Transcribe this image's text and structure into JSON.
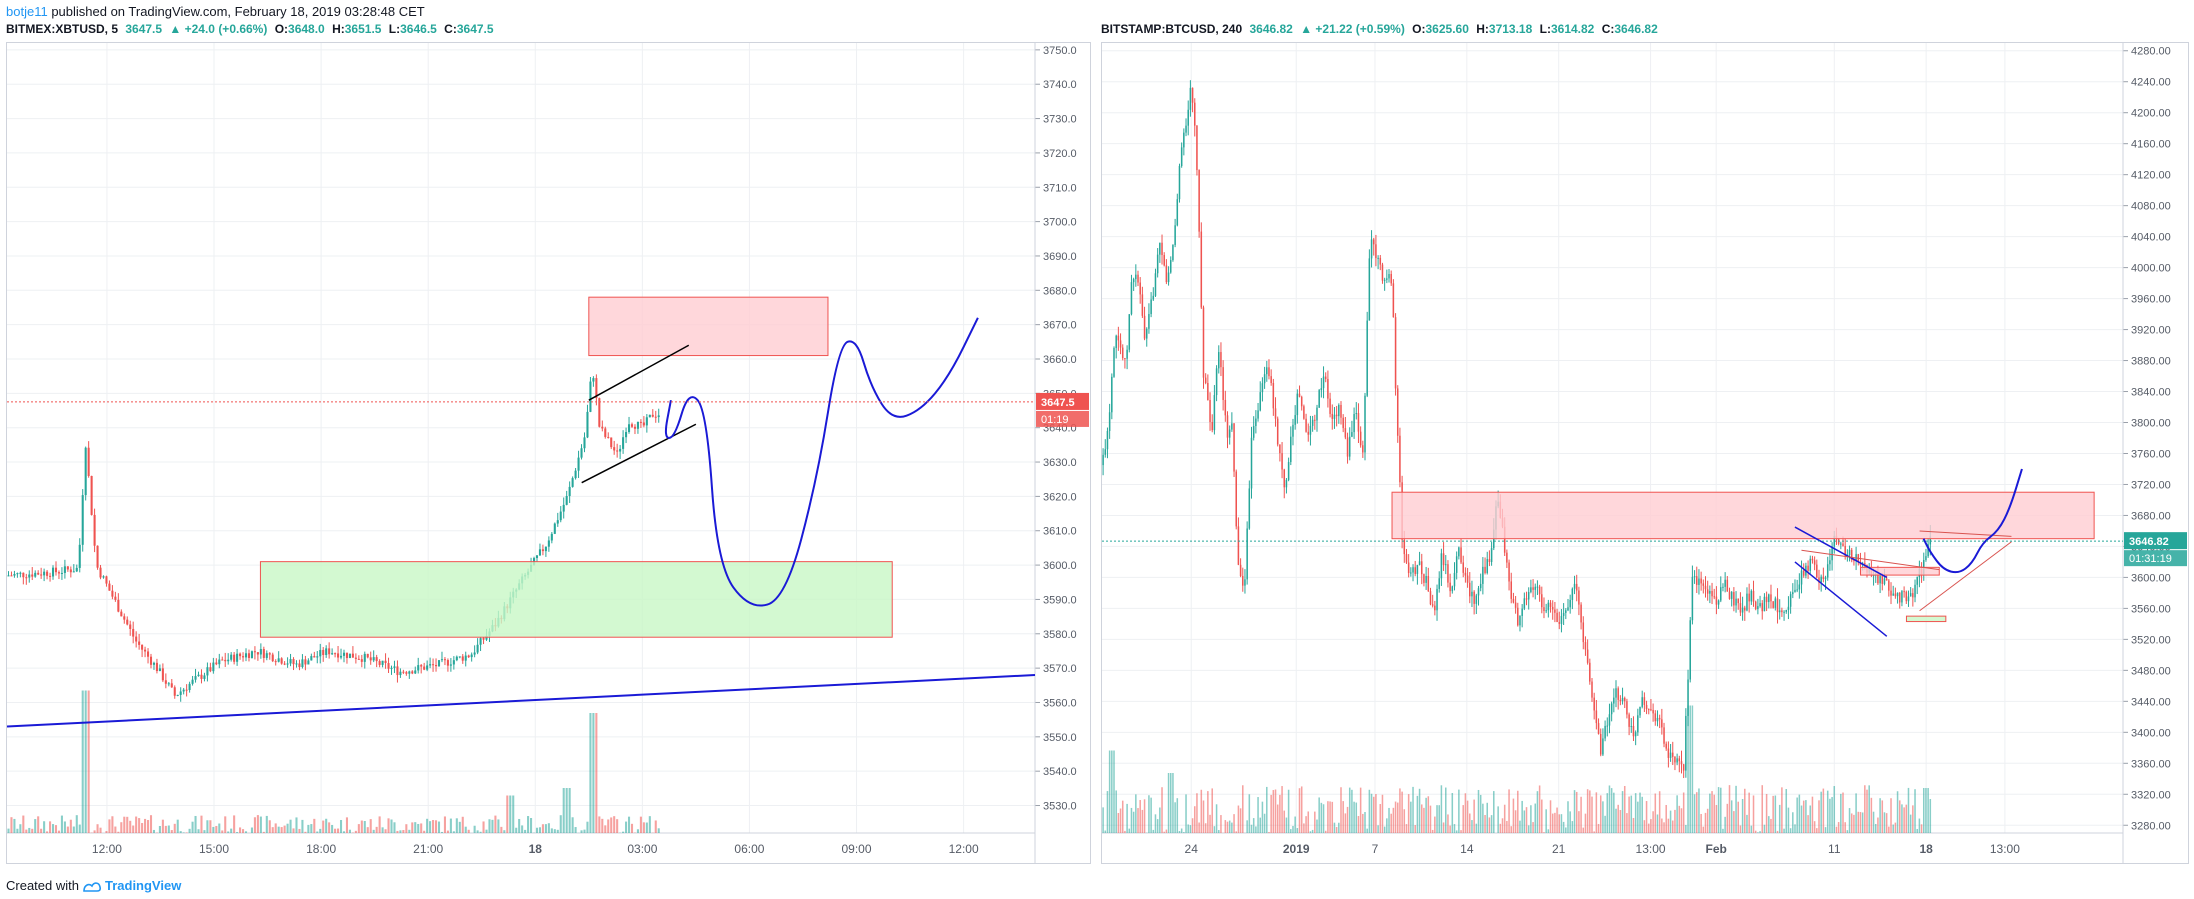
{
  "header": {
    "username": "botje11",
    "text": "published on TradingView.com, February 18, 2019 03:28:48 CET"
  },
  "footer": {
    "created_with": "Created with",
    "brand": "TradingView",
    "logo_icon": "tradingview-logo-icon"
  },
  "colors": {
    "up": "#26a69a",
    "down": "#ef5350",
    "grid": "#eef0f3",
    "axis_text": "#555b66",
    "trend": "#1a1ad6",
    "zone_red": "#ffcdd2",
    "zone_green": "#c8f7c5",
    "last_left": "#ef5350",
    "last_right": "#26a69a"
  },
  "chart_data": [
    {
      "type": "candlestick",
      "symbol_line": {
        "symbol": "BITMEX:XBTUSD, 5",
        "last": "3647.5",
        "change": "▲ +24.0 (+0.66%)",
        "o_label": "O:",
        "o": "3648.0",
        "h_label": "H:",
        "h": "3651.5",
        "l_label": "L:",
        "l": "3646.5",
        "c_label": "C:",
        "c": "3647.5"
      },
      "y_ticks": [
        "3750.0",
        "3740.0",
        "3730.0",
        "3720.0",
        "3710.0",
        "3700.0",
        "3690.0",
        "3680.0",
        "3670.0",
        "3660.0",
        "3650.0",
        "3640.0",
        "3630.0",
        "3620.0",
        "3610.0",
        "3600.0",
        "3590.0",
        "3580.0",
        "3570.0",
        "3560.0",
        "3550.0",
        "3540.0",
        "3530.0"
      ],
      "ylim": [
        3522,
        3752
      ],
      "x_ticks": [
        "12:00",
        "15:00",
        "18:00",
        "21:00",
        "18",
        "03:00",
        "06:00",
        "09:00",
        "12:00"
      ],
      "x_tick_hours": [
        12,
        15,
        18,
        21,
        24,
        27,
        30,
        33,
        36
      ],
      "x_range_hours": [
        9.2,
        38.0
      ],
      "last_price": {
        "value": 3647.5,
        "label": "3647.5",
        "countdown": "01:19"
      },
      "zones": [
        {
          "color": "red",
          "x0": 25.5,
          "x1": 32.2,
          "y0": 3661,
          "y1": 3678
        },
        {
          "color": "green",
          "x0": 16.3,
          "x1": 34.0,
          "y0": 3579,
          "y1": 3601
        }
      ],
      "lines": [
        {
          "color": "blue",
          "width": 2,
          "points": [
            [
              9.2,
              3553
            ],
            [
              38.0,
              3568
            ]
          ]
        },
        {
          "color": "black",
          "width": 1.5,
          "points": [
            [
              25.5,
              3648
            ],
            [
              28.3,
              3664
            ]
          ]
        },
        {
          "color": "black",
          "width": 1.5,
          "points": [
            [
              25.3,
              3624
            ],
            [
              28.5,
              3641
            ]
          ]
        }
      ],
      "drawing": {
        "color": "blue",
        "width": 2,
        "points": [
          [
            27.8,
            3648
          ],
          [
            27.6,
            3637
          ],
          [
            27.9,
            3637
          ],
          [
            28.3,
            3651
          ],
          [
            28.8,
            3645
          ],
          [
            29.1,
            3600
          ],
          [
            30.0,
            3587
          ],
          [
            31.0,
            3590
          ],
          [
            31.9,
            3625
          ],
          [
            32.5,
            3664
          ],
          [
            33.0,
            3666
          ],
          [
            33.4,
            3652
          ],
          [
            34.0,
            3642
          ],
          [
            34.8,
            3645
          ],
          [
            35.6,
            3655
          ],
          [
            36.4,
            3672
          ]
        ]
      },
      "candles_price_path": [
        [
          9.2,
          3597
        ],
        [
          10.5,
          3598
        ],
        [
          11.2,
          3599
        ],
        [
          11.4,
          3636
        ],
        [
          11.7,
          3600
        ],
        [
          12.2,
          3590
        ],
        [
          12.8,
          3578
        ],
        [
          13.4,
          3570
        ],
        [
          13.9,
          3562
        ],
        [
          14.4,
          3566
        ],
        [
          15.2,
          3572
        ],
        [
          16.2,
          3575
        ],
        [
          17.3,
          3571
        ],
        [
          18.2,
          3575
        ],
        [
          19.2,
          3573
        ],
        [
          20.2,
          3569
        ],
        [
          21.3,
          3571
        ],
        [
          22.2,
          3574
        ],
        [
          22.9,
          3583
        ],
        [
          23.6,
          3595
        ],
        [
          24.3,
          3606
        ],
        [
          24.9,
          3620
        ],
        [
          25.4,
          3638
        ],
        [
          25.6,
          3658
        ],
        [
          25.8,
          3640
        ],
        [
          26.3,
          3632
        ],
        [
          26.6,
          3642
        ],
        [
          27.0,
          3640
        ],
        [
          27.3,
          3644
        ]
      ],
      "volume_spikes": [
        [
          11.4,
          0.95
        ],
        [
          25.6,
          0.8
        ],
        [
          23.3,
          0.25
        ],
        [
          24.9,
          0.3
        ]
      ]
    },
    {
      "type": "candlestick",
      "symbol_line": {
        "symbol": "BITSTAMP:BTCUSD, 240",
        "last": "3646.82",
        "change": "▲ +21.22 (+0.59%)",
        "o_label": "O:",
        "o": "3625.60",
        "h_label": "H:",
        "h": "3713.18",
        "l_label": "L:",
        "l": "3614.82",
        "c_label": "C:",
        "c": "3646.82"
      },
      "y_ticks": [
        "4280.00",
        "4240.00",
        "4200.00",
        "4160.00",
        "4120.00",
        "4080.00",
        "4040.00",
        "4000.00",
        "3960.00",
        "3920.00",
        "3880.00",
        "3840.00",
        "3800.00",
        "3760.00",
        "3720.00",
        "3680.00",
        "3640.00",
        "3600.00",
        "3560.00",
        "3520.00",
        "3480.00",
        "3440.00",
        "3400.00",
        "3360.00",
        "3320.00",
        "3280.00"
      ],
      "ylim": [
        3270,
        4290
      ],
      "x_ticks": [
        "24",
        "2019",
        "7",
        "14",
        "21",
        "13:00",
        "Feb",
        "11",
        "18",
        "13:00"
      ],
      "x_tick_days": [
        24,
        32,
        38,
        45,
        52,
        59,
        64,
        73,
        80,
        86
      ],
      "x_range_days": [
        17.2,
        95.0
      ],
      "last_price": {
        "value": 3646.82,
        "label": "3646.82",
        "countdown": "01:31:19"
      },
      "zones": [
        {
          "color": "red",
          "x0": 39.3,
          "x1": 92.8,
          "y0": 3650,
          "y1": 3710
        },
        {
          "color": "red",
          "x0": 75.0,
          "x1": 81.0,
          "y0": 3603,
          "y1": 3613
        },
        {
          "color": "green",
          "x0": 78.5,
          "x1": 81.5,
          "y0": 3543,
          "y1": 3550
        }
      ],
      "lines": [
        {
          "color": "blue",
          "width": 1.5,
          "points": [
            [
              70.0,
              3665
            ],
            [
              77.0,
              3600
            ]
          ]
        },
        {
          "color": "blue",
          "width": 1.5,
          "points": [
            [
              70.0,
              3620
            ],
            [
              77.0,
              3524
            ]
          ]
        },
        {
          "color": "red",
          "width": 1,
          "points": [
            [
              70.5,
              3635
            ],
            [
              81.0,
              3610
            ]
          ]
        },
        {
          "color": "red",
          "width": 1,
          "points": [
            [
              79.5,
              3557
            ],
            [
              86.5,
              3646
            ]
          ]
        },
        {
          "color": "red",
          "width": 1,
          "points": [
            [
              79.5,
              3660
            ],
            [
              86.5,
              3653
            ]
          ]
        }
      ],
      "drawing": {
        "color": "blue",
        "width": 2,
        "points": [
          [
            79.8,
            3650
          ],
          [
            80.3,
            3633
          ],
          [
            81.3,
            3610
          ],
          [
            82.5,
            3605
          ],
          [
            83.5,
            3618
          ],
          [
            84.3,
            3645
          ],
          [
            85.5,
            3660
          ],
          [
            86.4,
            3690
          ],
          [
            87.3,
            3740
          ]
        ]
      },
      "candles_price_path": [
        [
          17.2,
          3745
        ],
        [
          17.7,
          3800
        ],
        [
          18.2,
          3925
        ],
        [
          19.0,
          3870
        ],
        [
          19.5,
          3990
        ],
        [
          19.9,
          3990
        ],
        [
          20.5,
          3900
        ],
        [
          21.0,
          3960
        ],
        [
          21.6,
          4025
        ],
        [
          22.2,
          3980
        ],
        [
          22.7,
          4040
        ],
        [
          23.2,
          4150
        ],
        [
          24.0,
          4230
        ],
        [
          24.4,
          4150
        ],
        [
          24.9,
          3870
        ],
        [
          25.6,
          3790
        ],
        [
          26.1,
          3900
        ],
        [
          26.7,
          3780
        ],
        [
          27.1,
          3790
        ],
        [
          27.6,
          3610
        ],
        [
          28.1,
          3590
        ],
        [
          28.6,
          3790
        ],
        [
          29.2,
          3830
        ],
        [
          29.8,
          3880
        ],
        [
          30.5,
          3790
        ],
        [
          31.1,
          3710
        ],
        [
          31.7,
          3800
        ],
        [
          32.2,
          3840
        ],
        [
          32.8,
          3780
        ],
        [
          33.4,
          3810
        ],
        [
          34.1,
          3865
        ],
        [
          34.7,
          3800
        ],
        [
          35.3,
          3820
        ],
        [
          35.9,
          3760
        ],
        [
          36.5,
          3810
        ],
        [
          37.1,
          3760
        ],
        [
          37.6,
          4035
        ],
        [
          38.2,
          4010
        ],
        [
          38.8,
          3980
        ],
        [
          39.3,
          3990
        ],
        [
          39.6,
          3830
        ],
        [
          40.1,
          3640
        ],
        [
          40.7,
          3600
        ],
        [
          41.3,
          3620
        ],
        [
          41.9,
          3595
        ],
        [
          42.5,
          3550
        ],
        [
          43.1,
          3630
        ],
        [
          43.8,
          3580
        ],
        [
          44.4,
          3640
        ],
        [
          45.0,
          3590
        ],
        [
          45.6,
          3570
        ],
        [
          46.2,
          3610
        ],
        [
          46.8,
          3620
        ],
        [
          47.3,
          3700
        ],
        [
          47.8,
          3650
        ],
        [
          48.3,
          3580
        ],
        [
          49.0,
          3540
        ],
        [
          49.6,
          3580
        ],
        [
          50.2,
          3590
        ],
        [
          50.8,
          3560
        ],
        [
          51.4,
          3560
        ],
        [
          52.0,
          3540
        ],
        [
          52.7,
          3570
        ],
        [
          53.3,
          3590
        ],
        [
          53.9,
          3520
        ],
        [
          54.5,
          3450
        ],
        [
          55.2,
          3380
        ],
        [
          55.8,
          3420
        ],
        [
          56.4,
          3450
        ],
        [
          57.0,
          3440
        ],
        [
          57.7,
          3390
        ],
        [
          58.3,
          3450
        ],
        [
          58.9,
          3430
        ],
        [
          59.6,
          3420
        ],
        [
          60.3,
          3370
        ],
        [
          60.9,
          3360
        ],
        [
          61.5,
          3350
        ],
        [
          62.2,
          3600
        ],
        [
          62.9,
          3590
        ],
        [
          63.5,
          3580
        ],
        [
          64.1,
          3570
        ],
        [
          64.7,
          3590
        ],
        [
          65.4,
          3570
        ],
        [
          66.0,
          3560
        ],
        [
          66.6,
          3580
        ],
        [
          67.3,
          3560
        ],
        [
          67.9,
          3575
        ],
        [
          68.5,
          3565
        ],
        [
          69.2,
          3560
        ],
        [
          69.9,
          3580
        ],
        [
          70.5,
          3600
        ],
        [
          71.2,
          3620
        ],
        [
          71.9,
          3600
        ],
        [
          72.5,
          3610
        ],
        [
          73.0,
          3650
        ],
        [
          73.6,
          3640
        ],
        [
          74.2,
          3630
        ],
        [
          74.8,
          3620
        ],
        [
          75.5,
          3610
        ],
        [
          76.1,
          3600
        ],
        [
          76.8,
          3590
        ],
        [
          77.4,
          3580
        ],
        [
          78.1,
          3575
        ],
        [
          78.7,
          3570
        ],
        [
          79.3,
          3595
        ],
        [
          79.8,
          3620
        ],
        [
          80.3,
          3645
        ]
      ],
      "volume_spikes": [
        [
          17.9,
          0.55
        ],
        [
          22.5,
          0.4
        ],
        [
          62.0,
          0.85
        ],
        [
          80.0,
          0.3
        ]
      ]
    }
  ]
}
